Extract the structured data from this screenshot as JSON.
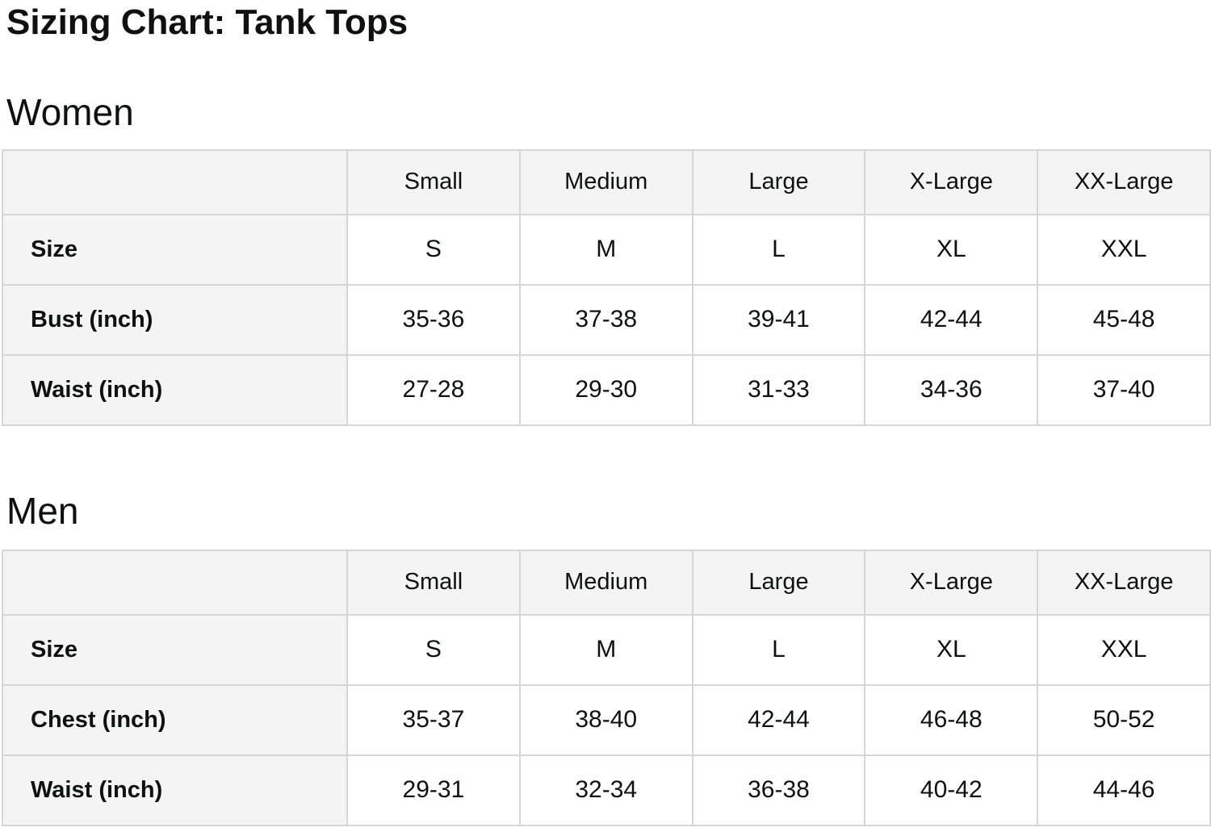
{
  "page": {
    "title": "Sizing Chart: Tank Tops"
  },
  "colors": {
    "text": "#0f1111",
    "header_cell_bg": "#f4f4f4",
    "data_cell_bg": "#ffffff",
    "border": "#d6d6d6"
  },
  "tables": [
    {
      "section": "Women",
      "columns": [
        "",
        "Small",
        "Medium",
        "Large",
        "X-Large",
        "XX-Large"
      ],
      "rows": [
        {
          "label": "Size",
          "values": [
            "S",
            "M",
            "L",
            "XL",
            "XXL"
          ]
        },
        {
          "label": "Bust (inch)",
          "values": [
            "35-36",
            "37-38",
            "39-41",
            "42-44",
            "45-48"
          ]
        },
        {
          "label": "Waist (inch)",
          "values": [
            "27-28",
            "29-30",
            "31-33",
            "34-36",
            "37-40"
          ]
        }
      ]
    },
    {
      "section": "Men",
      "columns": [
        "",
        "Small",
        "Medium",
        "Large",
        "X-Large",
        "XX-Large"
      ],
      "rows": [
        {
          "label": "Size",
          "values": [
            "S",
            "M",
            "L",
            "XL",
            "XXL"
          ]
        },
        {
          "label": "Chest (inch)",
          "values": [
            "35-37",
            "38-40",
            "42-44",
            "46-48",
            "50-52"
          ]
        },
        {
          "label": "Waist (inch)",
          "values": [
            "29-31",
            "32-34",
            "36-38",
            "40-42",
            "44-46"
          ]
        }
      ]
    }
  ]
}
